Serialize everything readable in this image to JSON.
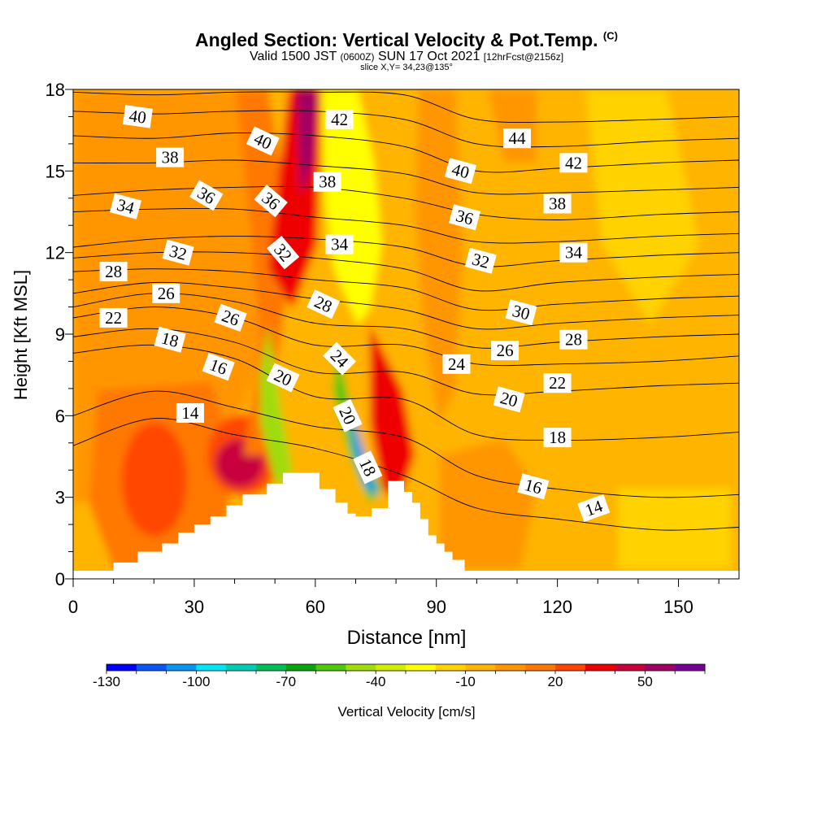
{
  "header": {
    "title": "Angled Section: Vertical Velocity & Pot.Temp.",
    "title_suffix": "(C)",
    "valid_prefix": "Valid 1500 JST",
    "valid_zulu": "(0600Z)",
    "valid_date": "SUN 17 Oct 2021",
    "forecast": "[12hrFcst@2156z]",
    "slice": "slice X,Y= 34,23@135°"
  },
  "chart_data": {
    "type": "heatmap",
    "xlabel": "Distance [nm]",
    "ylabel": "Height [Kft MSL]",
    "xlim": [
      0,
      165
    ],
    "ylim": [
      0,
      18
    ],
    "x_ticks": [
      0,
      30,
      60,
      90,
      120,
      150
    ],
    "y_ticks": [
      0,
      3,
      6,
      9,
      12,
      15,
      18
    ],
    "colorbar": {
      "label": "Vertical Velocity [cm/s]",
      "tick_labels": [
        -130,
        -100,
        -70,
        -40,
        -10,
        20,
        50
      ],
      "min": -130,
      "step": 10,
      "colors": [
        "#0000ff",
        "#0a55f5",
        "#0a96f0",
        "#00e6f5",
        "#00cdb4",
        "#00be5a",
        "#0aa50a",
        "#50c80a",
        "#a0dc0a",
        "#d2ee00",
        "#ffff00",
        "#ffd200",
        "#ffb400",
        "#ff9600",
        "#ff7800",
        "#ff4600",
        "#ee0000",
        "#c8003c",
        "#a00064",
        "#780096"
      ]
    },
    "terrain": [
      [
        0,
        0.3
      ],
      [
        10,
        0.3
      ],
      [
        10,
        0.6
      ],
      [
        16,
        0.6
      ],
      [
        16,
        1
      ],
      [
        22,
        1
      ],
      [
        22,
        1.3
      ],
      [
        26,
        1.3
      ],
      [
        26,
        1.7
      ],
      [
        30,
        1.7
      ],
      [
        30,
        2
      ],
      [
        34,
        2
      ],
      [
        34,
        2.3
      ],
      [
        38,
        2.3
      ],
      [
        38,
        2.7
      ],
      [
        42,
        2.7
      ],
      [
        42,
        3.1
      ],
      [
        48,
        3.1
      ],
      [
        48,
        3.5
      ],
      [
        52,
        3.5
      ],
      [
        52,
        3.9
      ],
      [
        61,
        3.9
      ],
      [
        61,
        3.3
      ],
      [
        65,
        3.3
      ],
      [
        65,
        2.8
      ],
      [
        68,
        2.8
      ],
      [
        68,
        2.4
      ],
      [
        70,
        2.4
      ],
      [
        70,
        2.3
      ],
      [
        74,
        2.3
      ],
      [
        74,
        2.6
      ],
      [
        78,
        2.6
      ],
      [
        78,
        3.6
      ],
      [
        82,
        3.6
      ],
      [
        82,
        3.2
      ],
      [
        84,
        3.2
      ],
      [
        84,
        2.8
      ],
      [
        86,
        2.8
      ],
      [
        86,
        2.2
      ],
      [
        88,
        2.2
      ],
      [
        88,
        1.6
      ],
      [
        90,
        1.6
      ],
      [
        90,
        1.3
      ],
      [
        92,
        1.3
      ],
      [
        92,
        1
      ],
      [
        94,
        1
      ],
      [
        94,
        0.7
      ],
      [
        97,
        0.7
      ],
      [
        97,
        0.3
      ],
      [
        165,
        0.3
      ]
    ],
    "series": [
      {
        "name": "14",
        "values": [
          [
            0,
            4.9
          ],
          [
            20,
            5.9
          ],
          [
            40,
            5.3
          ],
          [
            60,
            4.8
          ],
          [
            82,
            3.8
          ],
          [
            100,
            2.6
          ],
          [
            120,
            2.2
          ],
          [
            145,
            1.8
          ],
          [
            165,
            1.9
          ]
        ]
      },
      {
        "name": "16",
        "values": [
          [
            0,
            6.0
          ],
          [
            20,
            6.9
          ],
          [
            40,
            6.3
          ],
          [
            60,
            5.6
          ],
          [
            82,
            5.2
          ],
          [
            100,
            3.8
          ],
          [
            120,
            3.3
          ],
          [
            145,
            3.0
          ],
          [
            165,
            3.1
          ]
        ]
      },
      {
        "name": "18",
        "values": [
          [
            0,
            8.3
          ],
          [
            20,
            8.6
          ],
          [
            40,
            8.1
          ],
          [
            60,
            6.7
          ],
          [
            82,
            6.6
          ],
          [
            100,
            5.3
          ],
          [
            120,
            5.1
          ],
          [
            145,
            5.2
          ],
          [
            165,
            5.4
          ]
        ]
      },
      {
        "name": "20",
        "values": [
          [
            0,
            8.9
          ],
          [
            20,
            9.2
          ],
          [
            40,
            8.7
          ],
          [
            60,
            7.6
          ],
          [
            82,
            7.6
          ],
          [
            100,
            6.8
          ],
          [
            120,
            6.9
          ],
          [
            145,
            7.1
          ],
          [
            165,
            7.2
          ]
        ]
      },
      {
        "name": "22",
        "values": [
          [
            0,
            9.6
          ],
          [
            20,
            10.0
          ],
          [
            40,
            9.6
          ],
          [
            60,
            8.6
          ],
          [
            82,
            8.6
          ],
          [
            100,
            7.9
          ],
          [
            120,
            7.9
          ],
          [
            145,
            8.0
          ],
          [
            165,
            8.2
          ]
        ]
      },
      {
        "name": "24",
        "values": [
          [
            0,
            10.0
          ],
          [
            20,
            10.5
          ],
          [
            40,
            10.2
          ],
          [
            60,
            9.4
          ],
          [
            82,
            9.2
          ],
          [
            100,
            8.5
          ],
          [
            120,
            8.7
          ],
          [
            145,
            8.9
          ],
          [
            165,
            9.0
          ]
        ]
      },
      {
        "name": "26",
        "values": [
          [
            0,
            10.5
          ],
          [
            20,
            10.9
          ],
          [
            40,
            10.7
          ],
          [
            60,
            10.3
          ],
          [
            82,
            9.9
          ],
          [
            100,
            9.2
          ],
          [
            120,
            9.4
          ],
          [
            145,
            9.6
          ],
          [
            165,
            9.7
          ]
        ]
      },
      {
        "name": "28",
        "values": [
          [
            0,
            11.3
          ],
          [
            20,
            11.4
          ],
          [
            40,
            11.3
          ],
          [
            60,
            11.0
          ],
          [
            82,
            10.7
          ],
          [
            100,
            9.9
          ],
          [
            120,
            10.1
          ],
          [
            145,
            10.3
          ],
          [
            165,
            10.4
          ]
        ]
      },
      {
        "name": "30",
        "values": [
          [
            0,
            11.8
          ],
          [
            20,
            12.0
          ],
          [
            40,
            12.0
          ],
          [
            60,
            11.8
          ],
          [
            82,
            11.4
          ],
          [
            100,
            10.6
          ],
          [
            120,
            10.9
          ],
          [
            145,
            11.1
          ],
          [
            165,
            11.2
          ]
        ]
      },
      {
        "name": "32",
        "values": [
          [
            0,
            12.2
          ],
          [
            20,
            12.5
          ],
          [
            40,
            12.6
          ],
          [
            60,
            12.5
          ],
          [
            82,
            12.2
          ],
          [
            100,
            11.5
          ],
          [
            120,
            11.7
          ],
          [
            145,
            11.9
          ],
          [
            165,
            12.0
          ]
        ]
      },
      {
        "name": "34",
        "values": [
          [
            0,
            13.5
          ],
          [
            20,
            13.6
          ],
          [
            40,
            13.6
          ],
          [
            60,
            13.3
          ],
          [
            82,
            13.0
          ],
          [
            100,
            12.4
          ],
          [
            120,
            12.4
          ],
          [
            145,
            12.6
          ],
          [
            165,
            12.7
          ]
        ]
      },
      {
        "name": "36",
        "values": [
          [
            0,
            14.1
          ],
          [
            20,
            14.3
          ],
          [
            40,
            14.4
          ],
          [
            60,
            14.4
          ],
          [
            82,
            14.0
          ],
          [
            100,
            13.4
          ],
          [
            120,
            13.2
          ],
          [
            145,
            13.4
          ],
          [
            165,
            13.5
          ]
        ]
      },
      {
        "name": "38",
        "values": [
          [
            0,
            15.3
          ],
          [
            20,
            15.3
          ],
          [
            40,
            15.4
          ],
          [
            60,
            15.2
          ],
          [
            82,
            14.9
          ],
          [
            100,
            14.2
          ],
          [
            120,
            14.2
          ],
          [
            145,
            14.3
          ],
          [
            165,
            14.4
          ]
        ]
      },
      {
        "name": "40",
        "values": [
          [
            0,
            16.3
          ],
          [
            20,
            16.2
          ],
          [
            40,
            16.4
          ],
          [
            60,
            16.3
          ],
          [
            82,
            15.9
          ],
          [
            100,
            15.0
          ],
          [
            120,
            15.1
          ],
          [
            145,
            15.3
          ],
          [
            165,
            15.4
          ]
        ]
      },
      {
        "name": "42",
        "values": [
          [
            0,
            17.2
          ],
          [
            20,
            17.1
          ],
          [
            40,
            17.2
          ],
          [
            60,
            17.2
          ],
          [
            82,
            16.9
          ],
          [
            100,
            16.0
          ],
          [
            120,
            15.9
          ],
          [
            145,
            16.1
          ],
          [
            165,
            16.2
          ]
        ]
      },
      {
        "name": "44",
        "values": [
          [
            0,
            17.9
          ],
          [
            20,
            17.8
          ],
          [
            40,
            17.9
          ],
          [
            60,
            17.9
          ],
          [
            82,
            17.8
          ],
          [
            100,
            16.9
          ],
          [
            120,
            16.8
          ],
          [
            145,
            16.9
          ],
          [
            165,
            17.0
          ]
        ]
      }
    ],
    "contour_labels": [
      {
        "text": "40",
        "x": 16,
        "y": 17.0,
        "rot": 8
      },
      {
        "text": "38",
        "x": 24,
        "y": 15.5,
        "rot": 0
      },
      {
        "text": "34",
        "x": 13,
        "y": 13.7,
        "rot": 15
      },
      {
        "text": "36",
        "x": 33,
        "y": 14.1,
        "rot": 30
      },
      {
        "text": "32",
        "x": 26,
        "y": 12.0,
        "rot": 15
      },
      {
        "text": "28",
        "x": 10,
        "y": 11.3,
        "rot": 0
      },
      {
        "text": "26",
        "x": 23,
        "y": 10.5,
        "rot": 0
      },
      {
        "text": "22",
        "x": 10,
        "y": 9.6,
        "rot": 0
      },
      {
        "text": "26",
        "x": 39,
        "y": 9.6,
        "rot": 20
      },
      {
        "text": "18",
        "x": 24,
        "y": 8.8,
        "rot": 15
      },
      {
        "text": "16",
        "x": 36,
        "y": 7.8,
        "rot": 20
      },
      {
        "text": "14",
        "x": 29,
        "y": 6.1,
        "rot": 0
      },
      {
        "text": "40",
        "x": 47,
        "y": 16.1,
        "rot": 25
      },
      {
        "text": "36",
        "x": 49,
        "y": 13.9,
        "rot": 40
      },
      {
        "text": "32",
        "x": 52,
        "y": 12.0,
        "rot": 50
      },
      {
        "text": "20",
        "x": 52,
        "y": 7.4,
        "rot": 25
      },
      {
        "text": "42",
        "x": 66,
        "y": 16.9,
        "rot": 0
      },
      {
        "text": "38",
        "x": 63,
        "y": 14.6,
        "rot": 0
      },
      {
        "text": "34",
        "x": 66,
        "y": 12.3,
        "rot": 0
      },
      {
        "text": "28",
        "x": 62,
        "y": 10.1,
        "rot": 25
      },
      {
        "text": "24",
        "x": 66,
        "y": 8.1,
        "rot": 45
      },
      {
        "text": "20",
        "x": 68,
        "y": 6.0,
        "rot": 65
      },
      {
        "text": "18",
        "x": 73,
        "y": 4.1,
        "rot": 65
      },
      {
        "text": "44",
        "x": 110,
        "y": 16.2,
        "rot": 0
      },
      {
        "text": "40",
        "x": 96,
        "y": 15.0,
        "rot": 15
      },
      {
        "text": "42",
        "x": 124,
        "y": 15.3,
        "rot": 0
      },
      {
        "text": "36",
        "x": 97,
        "y": 13.3,
        "rot": 15
      },
      {
        "text": "38",
        "x": 120,
        "y": 13.8,
        "rot": 0
      },
      {
        "text": "32",
        "x": 101,
        "y": 11.7,
        "rot": 15
      },
      {
        "text": "34",
        "x": 124,
        "y": 12.0,
        "rot": 0
      },
      {
        "text": "30",
        "x": 111,
        "y": 9.8,
        "rot": 15
      },
      {
        "text": "28",
        "x": 124,
        "y": 8.8,
        "rot": 0
      },
      {
        "text": "26",
        "x": 107,
        "y": 8.4,
        "rot": 0
      },
      {
        "text": "24",
        "x": 95,
        "y": 7.9,
        "rot": 0
      },
      {
        "text": "22",
        "x": 120,
        "y": 7.2,
        "rot": 0
      },
      {
        "text": "20",
        "x": 108,
        "y": 6.6,
        "rot": 15
      },
      {
        "text": "18",
        "x": 120,
        "y": 5.2,
        "rot": 0
      },
      {
        "text": "16",
        "x": 114,
        "y": 3.4,
        "rot": 15
      },
      {
        "text": "14",
        "x": 129,
        "y": 2.6,
        "rot": -20
      }
    ],
    "grid": false,
    "legend": "none"
  }
}
